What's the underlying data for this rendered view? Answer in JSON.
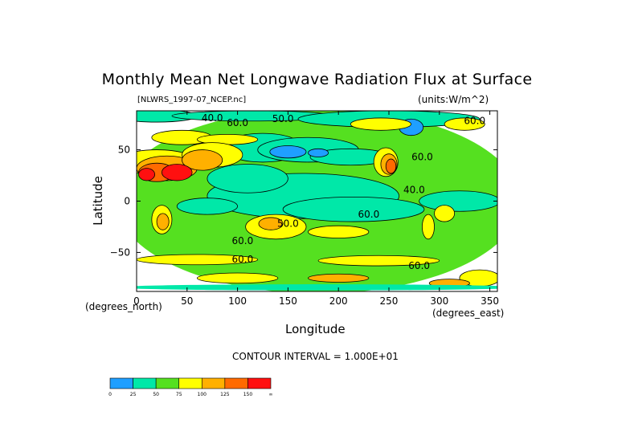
{
  "chart_data": {
    "type": "heatmap",
    "title": "Monthly Mean Net Longwave Radiation Flux at Surface",
    "subtitle_left": "[NLWRS_1997-07_NCEP.nc]",
    "subtitle_right": "(units:W/m^2)",
    "xlabel": "Longitude",
    "ylabel": "Latitude",
    "x_units": "(degrees_east)",
    "y_units": "(degrees_north)",
    "xlim": [
      0,
      357.5
    ],
    "ylim": [
      -88,
      88
    ],
    "x_ticks": [
      0,
      50,
      100,
      150,
      200,
      250,
      300,
      350
    ],
    "x_tick_labels": [
      "0",
      "50",
      "100",
      "150",
      "200",
      "250",
      "300",
      "350"
    ],
    "y_ticks": [
      50,
      0,
      -50
    ],
    "y_tick_labels": [
      "50",
      "0",
      "−50"
    ],
    "contour_interval": "CONTOUR INTERVAL = 1.000E+01",
    "contour_labels": [
      {
        "text": "40.0",
        "lon": 75,
        "lat": 78
      },
      {
        "text": "60.0",
        "lon": 100,
        "lat": 73
      },
      {
        "text": "50.0",
        "lon": 145,
        "lat": 77
      },
      {
        "text": "60.0",
        "lon": 335,
        "lat": 75
      },
      {
        "text": "60.0",
        "lon": 283,
        "lat": 40
      },
      {
        "text": "40.0",
        "lon": 275,
        "lat": 8
      },
      {
        "text": "60.0",
        "lon": 230,
        "lat": -16
      },
      {
        "text": "50.0",
        "lon": 150,
        "lat": -25
      },
      {
        "text": "60.0",
        "lon": 105,
        "lat": -42
      },
      {
        "text": "60.0",
        "lon": 105,
        "lat": -60
      },
      {
        "text": "60.0",
        "lon": 280,
        "lat": -66
      }
    ],
    "colorbar": {
      "levels": [
        "0",
        "25",
        "50",
        "75",
        "100",
        "125",
        "150",
        "∞"
      ],
      "colors": [
        "#1f9fff",
        "#00e8a8",
        "#55e020",
        "#ffff00",
        "#ffb000",
        "#ff6a00",
        "#ff1010"
      ]
    },
    "regions": [
      {
        "lon": 180,
        "lat": 0,
        "rlon": 200,
        "rlat": 90,
        "level": 2
      },
      {
        "lon": 20,
        "lat": 83,
        "rlon": 40,
        "rlat": 6,
        "level": 1
      },
      {
        "lon": 115,
        "lat": 83,
        "rlon": 80,
        "rlat": 5,
        "level": 1
      },
      {
        "lon": 250,
        "lat": 80,
        "rlon": 90,
        "rlat": 8,
        "level": 1
      },
      {
        "lon": 125,
        "lat": 52,
        "rlon": 40,
        "rlat": 14,
        "level": 1
      },
      {
        "lon": 170,
        "lat": 50,
        "rlon": 50,
        "rlat": 12,
        "level": 1
      },
      {
        "lon": 212,
        "lat": 43,
        "rlon": 40,
        "rlat": 8,
        "level": 1
      },
      {
        "lon": 165,
        "lat": 5,
        "rlon": 95,
        "rlat": 22,
        "level": 1
      },
      {
        "lon": 110,
        "lat": 22,
        "rlon": 40,
        "rlat": 14,
        "level": 1
      },
      {
        "lon": 215,
        "lat": -8,
        "rlon": 70,
        "rlat": 12,
        "level": 1
      },
      {
        "lon": 320,
        "lat": 0,
        "rlon": 40,
        "rlat": 10,
        "level": 1
      },
      {
        "lon": 70,
        "lat": -5,
        "rlon": 30,
        "rlat": 8,
        "level": 1
      },
      {
        "lon": 150,
        "lat": 48,
        "rlon": 18,
        "rlat": 6,
        "level": 0
      },
      {
        "lon": 180,
        "lat": 47,
        "rlon": 10,
        "rlat": 4,
        "level": 0
      },
      {
        "lon": 272,
        "lat": 72,
        "rlon": 12,
        "rlat": 8,
        "level": 0
      },
      {
        "lon": 45,
        "lat": 62,
        "rlon": 30,
        "rlat": 7,
        "level": 3
      },
      {
        "lon": 90,
        "lat": 60,
        "rlon": 30,
        "rlat": 5,
        "level": 3
      },
      {
        "lon": 242,
        "lat": 75,
        "rlon": 30,
        "rlat": 6,
        "level": 3
      },
      {
        "lon": 325,
        "lat": 75,
        "rlon": 20,
        "rlat": 6,
        "level": 3
      },
      {
        "lon": 20,
        "lat": 38,
        "rlon": 40,
        "rlat": 12,
        "level": 3
      },
      {
        "lon": 75,
        "lat": 45,
        "rlon": 30,
        "rlat": 12,
        "level": 3
      },
      {
        "lon": 30,
        "lat": 32,
        "rlon": 30,
        "rlat": 12,
        "level": 4
      },
      {
        "lon": 65,
        "lat": 40,
        "rlon": 20,
        "rlat": 10,
        "level": 4
      },
      {
        "lon": 20,
        "lat": 28,
        "rlon": 18,
        "rlat": 9,
        "level": 5
      },
      {
        "lon": 40,
        "lat": 28,
        "rlon": 15,
        "rlat": 8,
        "level": 6
      },
      {
        "lon": 10,
        "lat": 26,
        "rlon": 8,
        "rlat": 6,
        "level": 6
      },
      {
        "lon": 247,
        "lat": 38,
        "rlon": 12,
        "rlat": 14,
        "level": 3
      },
      {
        "lon": 250,
        "lat": 36,
        "rlon": 8,
        "rlat": 10,
        "level": 4
      },
      {
        "lon": 252,
        "lat": 34,
        "rlon": 5,
        "rlat": 7,
        "level": 5
      },
      {
        "lon": 25,
        "lat": -18,
        "rlon": 10,
        "rlat": 14,
        "level": 3
      },
      {
        "lon": 26,
        "lat": -20,
        "rlon": 6,
        "rlat": 8,
        "level": 4
      },
      {
        "lon": 138,
        "lat": -25,
        "rlon": 30,
        "rlat": 12,
        "level": 3
      },
      {
        "lon": 133,
        "lat": -22,
        "rlon": 12,
        "rlat": 6,
        "level": 4
      },
      {
        "lon": 200,
        "lat": -30,
        "rlon": 30,
        "rlat": 6,
        "level": 3
      },
      {
        "lon": 289,
        "lat": -25,
        "rlon": 6,
        "rlat": 12,
        "level": 3
      },
      {
        "lon": 305,
        "lat": -12,
        "rlon": 10,
        "rlat": 8,
        "level": 3
      },
      {
        "lon": 60,
        "lat": -57,
        "rlon": 60,
        "rlat": 5,
        "level": 3
      },
      {
        "lon": 240,
        "lat": -58,
        "rlon": 60,
        "rlat": 5,
        "level": 3
      },
      {
        "lon": 340,
        "lat": -75,
        "rlon": 20,
        "rlat": 8,
        "level": 3
      },
      {
        "lon": 100,
        "lat": -75,
        "rlon": 40,
        "rlat": 5,
        "level": 3
      },
      {
        "lon": 200,
        "lat": -75,
        "rlon": 30,
        "rlat": 4,
        "level": 4
      },
      {
        "lon": 310,
        "lat": -80,
        "rlon": 20,
        "rlat": 4,
        "level": 4
      },
      {
        "lon": 180,
        "lat": -84,
        "rlon": 200,
        "rlat": 3,
        "level": 1
      }
    ]
  }
}
